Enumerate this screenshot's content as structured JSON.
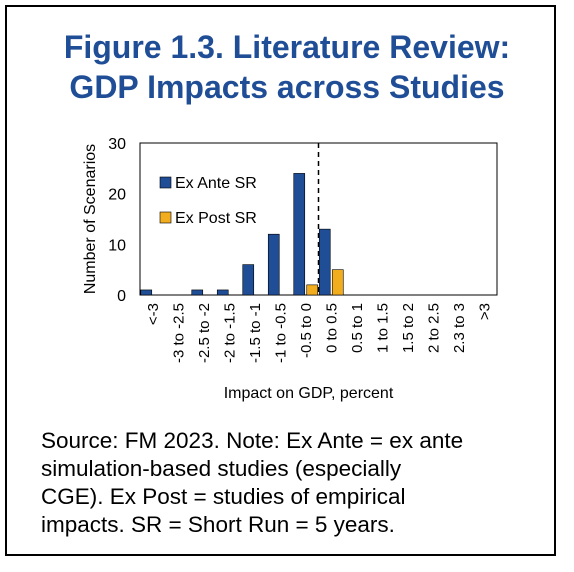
{
  "title_lines": [
    "Figure 1.3. Literature Review:",
    "GDP Impacts across Studies"
  ],
  "note_lines": [
    "Source: FM 2023. Note: Ex Ante = ex ante",
    "simulation-based studies (especially",
    "CGE). Ex Post = studies of empirical",
    "impacts. SR = Short Run = 5 years."
  ],
  "chart_data": {
    "type": "bar",
    "title": "",
    "xlabel": "Impact on GDP, percent",
    "ylabel": "Number of Scenarios",
    "ylim": [
      0,
      30
    ],
    "yticks": [
      0,
      10,
      20,
      30
    ],
    "grid": false,
    "legend": "top-left",
    "reference_line": {
      "category": "-0.5 to 0",
      "position": "right edge",
      "style": "dashed"
    },
    "categories": [
      "<-3",
      "-3 to -2.5",
      "-2.5 to -2",
      "-2 to -1.5",
      "-1.5 to -1",
      "-1 to -0.5",
      "-0.5 to 0",
      "0 to 0.5",
      "0.5 to 1",
      "1 to 1.5",
      "1.5 to 2",
      "2 to 2.5",
      "2.3 to 3",
      ">3"
    ],
    "series": [
      {
        "name": "Ex Ante SR",
        "color": "#1F4E96",
        "values": [
          1,
          0,
          1,
          1,
          6,
          12,
          24,
          13,
          0,
          0,
          0,
          0,
          0,
          0
        ]
      },
      {
        "name": "Ex Post SR",
        "color": "#F2AD1F",
        "values": [
          0,
          0,
          0,
          0,
          0,
          0,
          2,
          5,
          0,
          0,
          0,
          0,
          0,
          0
        ]
      }
    ]
  }
}
